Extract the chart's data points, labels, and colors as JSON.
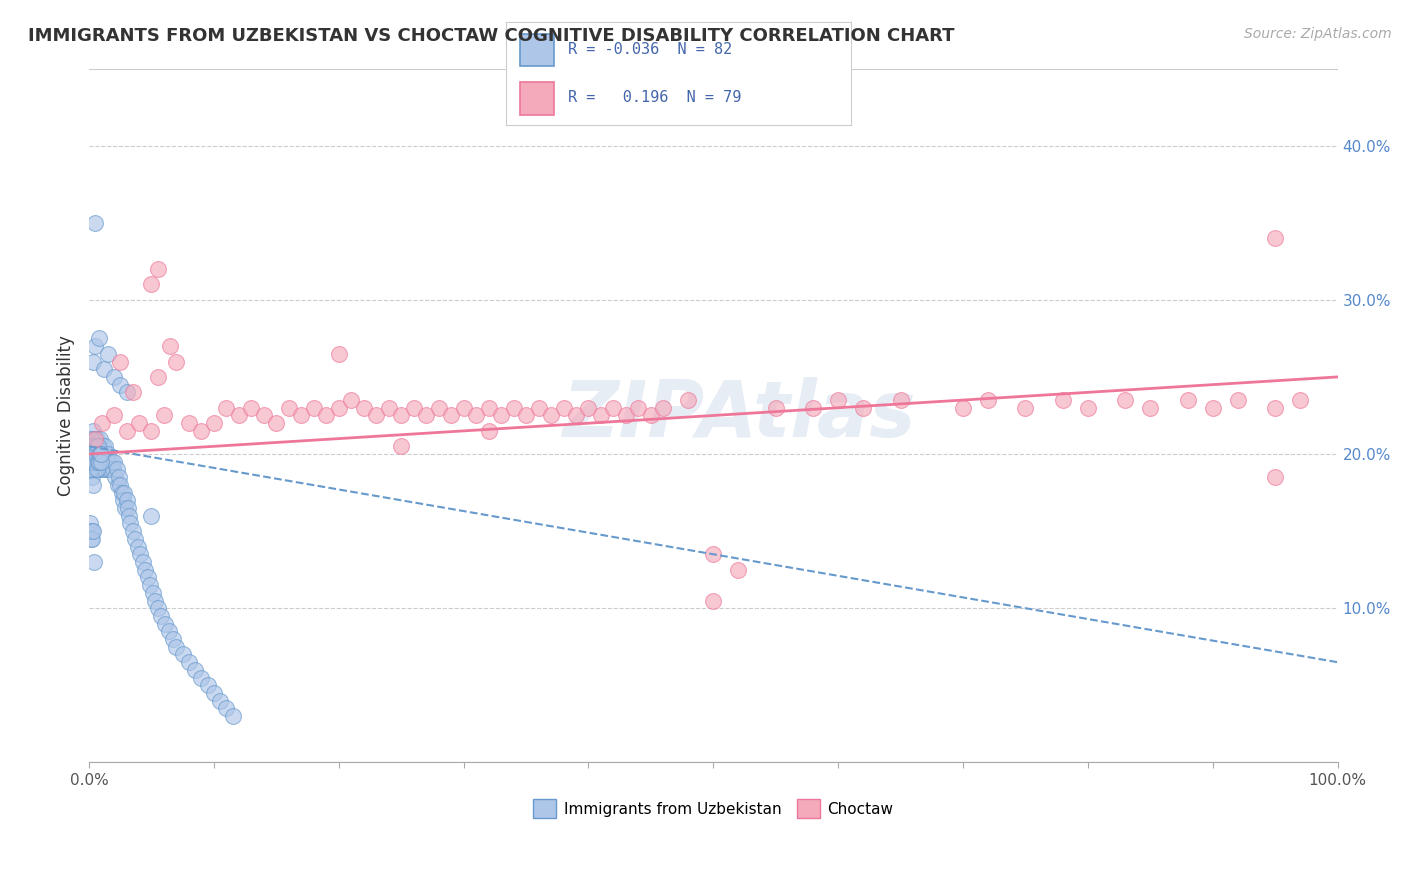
{
  "title": "IMMIGRANTS FROM UZBEKISTAN VS CHOCTAW COGNITIVE DISABILITY CORRELATION CHART",
  "source_text": "Source: ZipAtlas.com",
  "ylabel": "Cognitive Disability",
  "watermark": "ZIPAtlas",
  "xlim": [
    0,
    100
  ],
  "ylim": [
    0,
    45
  ],
  "ytick_positions": [
    10,
    20,
    30,
    40
  ],
  "ytick_labels": [
    "10.0%",
    "20.0%",
    "30.0%",
    "40.0%"
  ],
  "xtick_edge_labels": [
    "0.0%",
    "100.0%"
  ],
  "blue_color": "#6699CC",
  "pink_color": "#EE7799",
  "blue_face": "#AEC6E8",
  "pink_face": "#F4AABB",
  "legend_box_color": "#EEEEEE",
  "grid_color": "#CCCCCC",
  "background_color": "#FFFFFF",
  "blue_line_x0": 0,
  "blue_line_x1": 100,
  "blue_line_y0": 20.5,
  "blue_line_y1": 6.5,
  "pink_line_x0": 0,
  "pink_line_x1": 100,
  "pink_line_y0": 20.0,
  "pink_line_y1": 25.0,
  "blue_scatter_x": [
    0.1,
    0.15,
    0.2,
    0.2,
    0.25,
    0.3,
    0.3,
    0.35,
    0.35,
    0.4,
    0.4,
    0.45,
    0.5,
    0.5,
    0.5,
    0.55,
    0.6,
    0.6,
    0.65,
    0.7,
    0.7,
    0.75,
    0.8,
    0.8,
    0.85,
    0.9,
    0.95,
    1.0,
    1.0,
    1.1,
    1.1,
    1.2,
    1.2,
    1.3,
    1.3,
    1.4,
    1.5,
    1.5,
    1.6,
    1.7,
    1.8,
    1.9,
    2.0,
    2.1,
    2.2,
    2.3,
    2.4,
    2.5,
    2.6,
    2.7,
    2.8,
    2.9,
    3.0,
    3.1,
    3.2,
    3.3,
    3.5,
    3.7,
    3.9,
    4.1,
    4.3,
    4.5,
    4.7,
    4.9,
    5.1,
    5.3,
    5.5,
    5.8,
    6.1,
    6.4,
    6.7,
    7.0,
    7.5,
    8.0,
    8.5,
    9.0,
    9.5,
    10.0,
    10.5,
    11.0,
    11.5,
    5.0
  ],
  "blue_scatter_y": [
    20.5,
    19.5,
    21.0,
    18.5,
    20.0,
    19.0,
    21.5,
    20.0,
    18.0,
    21.0,
    19.5,
    20.5,
    20.0,
    19.0,
    21.0,
    20.5,
    19.5,
    20.0,
    21.0,
    20.5,
    19.0,
    20.0,
    20.5,
    19.5,
    20.0,
    21.0,
    19.5,
    20.0,
    19.0,
    20.5,
    19.5,
    20.0,
    19.0,
    20.5,
    19.0,
    19.5,
    20.0,
    19.0,
    19.5,
    19.0,
    19.5,
    19.0,
    19.5,
    18.5,
    19.0,
    18.0,
    18.5,
    18.0,
    17.5,
    17.0,
    17.5,
    16.5,
    17.0,
    16.5,
    16.0,
    15.5,
    15.0,
    14.5,
    14.0,
    13.5,
    13.0,
    12.5,
    12.0,
    11.5,
    11.0,
    10.5,
    10.0,
    9.5,
    9.0,
    8.5,
    8.0,
    7.5,
    7.0,
    6.5,
    6.0,
    5.5,
    5.0,
    4.5,
    4.0,
    3.5,
    3.0,
    16.0
  ],
  "blue_scatter_extra_x": [
    0.05,
    0.08,
    0.12,
    0.18,
    0.22,
    0.28,
    0.33,
    0.38,
    0.42,
    0.48,
    0.52,
    0.58,
    0.63,
    0.68,
    0.73,
    0.78,
    0.83,
    0.88,
    0.93,
    0.98,
    0.05,
    0.1,
    0.15,
    0.2,
    0.25,
    0.3
  ],
  "blue_scatter_extra_y": [
    20.0,
    19.5,
    21.0,
    19.0,
    20.5,
    19.5,
    20.0,
    19.5,
    20.0,
    19.5,
    20.5,
    20.0,
    19.0,
    20.5,
    19.5,
    20.0,
    19.5,
    20.0,
    19.5,
    20.0,
    15.0,
    15.5,
    14.5,
    15.0,
    14.5,
    15.0
  ],
  "blue_outlier_x": [
    0.3,
    0.5,
    0.8,
    1.2,
    1.5,
    2.0,
    2.5,
    3.0,
    0.5,
    0.4
  ],
  "blue_outlier_y": [
    26.0,
    27.0,
    27.5,
    25.5,
    26.5,
    25.0,
    24.5,
    24.0,
    35.0,
    13.0
  ],
  "pink_scatter_x": [
    0.5,
    1.0,
    2.0,
    3.0,
    4.0,
    5.0,
    6.0,
    7.0,
    8.0,
    9.0,
    10.0,
    11.0,
    12.0,
    13.0,
    14.0,
    15.0,
    16.0,
    17.0,
    18.0,
    19.0,
    20.0,
    21.0,
    22.0,
    23.0,
    24.0,
    25.0,
    26.0,
    27.0,
    28.0,
    29.0,
    30.0,
    31.0,
    32.0,
    33.0,
    34.0,
    35.0,
    36.0,
    37.0,
    38.0,
    39.0,
    40.0,
    41.0,
    42.0,
    43.0,
    44.0,
    45.0,
    46.0,
    48.0,
    50.0,
    52.0,
    55.0,
    58.0,
    60.0,
    62.0,
    65.0,
    70.0,
    72.0,
    75.0,
    78.0,
    80.0,
    83.0,
    85.0,
    88.0,
    90.0,
    92.0,
    95.0,
    97.0,
    5.5,
    2.5,
    3.5,
    32.0,
    50.0,
    95.0,
    95.0,
    20.0,
    25.0,
    5.0,
    5.5,
    6.5
  ],
  "pink_scatter_y": [
    21.0,
    22.0,
    22.5,
    21.5,
    22.0,
    21.5,
    22.5,
    26.0,
    22.0,
    21.5,
    22.0,
    23.0,
    22.5,
    23.0,
    22.5,
    22.0,
    23.0,
    22.5,
    23.0,
    22.5,
    23.0,
    23.5,
    23.0,
    22.5,
    23.0,
    22.5,
    23.0,
    22.5,
    23.0,
    22.5,
    23.0,
    22.5,
    23.0,
    22.5,
    23.0,
    22.5,
    23.0,
    22.5,
    23.0,
    22.5,
    23.0,
    22.5,
    23.0,
    22.5,
    23.0,
    22.5,
    23.0,
    23.5,
    13.5,
    12.5,
    23.0,
    23.0,
    23.5,
    23.0,
    23.5,
    23.0,
    23.5,
    23.0,
    23.5,
    23.0,
    23.5,
    23.0,
    23.5,
    23.0,
    23.5,
    23.0,
    23.5,
    25.0,
    26.0,
    24.0,
    21.5,
    10.5,
    34.0,
    18.5,
    26.5,
    20.5,
    31.0,
    32.0,
    27.0
  ]
}
